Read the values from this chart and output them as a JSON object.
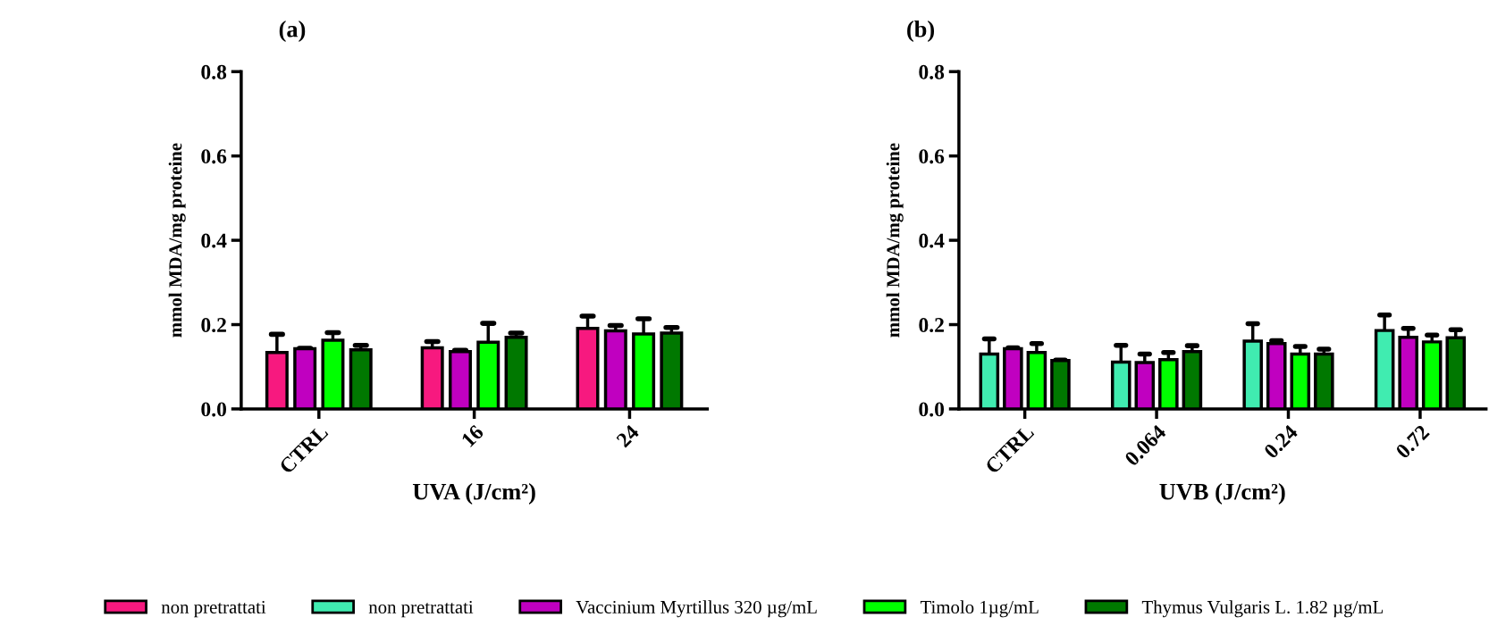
{
  "chart_data": [
    {
      "type": "bar",
      "title": "(a)",
      "xlabel": "UVA (J/cm²)",
      "ylabel": "mmol MDA/mg proteine",
      "categories": [
        "CTRL",
        "16",
        "24"
      ],
      "ylim": [
        0,
        0.8
      ],
      "yticks": [
        {
          "value": 0,
          "label": "0.0"
        },
        0.2,
        0.4,
        0.6,
        0.8
      ],
      "legend": "bottom",
      "series": [
        {
          "name": "non pretrattati",
          "color": "#f7197f",
          "values": [
            0.134,
            0.145,
            0.191
          ],
          "errors": [
            [
              0.134,
              0.177
            ],
            [
              0.145,
              0.16
            ],
            [
              0.191,
              0.22
            ]
          ]
        },
        {
          "name": "Vaccinium Myrtillus 320 µg/mL",
          "color": "#c000c0",
          "values": [
            0.143,
            0.136,
            0.185
          ],
          "errors": [
            [
              0.143,
              0.144
            ],
            [
              0.136,
              0.139
            ],
            [
              0.185,
              0.198
            ]
          ]
        },
        {
          "name": "Timolo 1µg/mL",
          "color": "#00ff00",
          "values": [
            0.163,
            0.158,
            0.178
          ],
          "errors": [
            [
              0.163,
              0.181
            ],
            [
              0.158,
              0.203
            ],
            [
              0.178,
              0.214
            ]
          ]
        },
        {
          "name": "Thymus Vulgaris L. 1.82 µg/mL",
          "color": "#007800",
          "values": [
            0.14,
            0.17,
            0.18
          ],
          "errors": [
            [
              0.14,
              0.151
            ],
            [
              0.17,
              0.18
            ],
            [
              0.18,
              0.193
            ]
          ]
        }
      ]
    },
    {
      "type": "bar",
      "title": "(b)",
      "xlabel": "UVB (J/cm²)",
      "ylabel": "mmol MDA/mg proteine",
      "categories": [
        "CTRL",
        "0.064",
        "0.24",
        "0.72"
      ],
      "ylim": [
        0,
        0.8
      ],
      "yticks": [
        {
          "value": 0,
          "label": "0.0"
        },
        0.2,
        0.4,
        0.6,
        0.8
      ],
      "legend": "bottom",
      "series": [
        {
          "name": "non pretrattati",
          "color": "#40ecb0",
          "values": [
            0.13,
            0.111,
            0.161,
            0.186
          ],
          "errors": [
            [
              0.13,
              0.166
            ],
            [
              0.111,
              0.151
            ],
            [
              0.161,
              0.202
            ],
            [
              0.186,
              0.223
            ]
          ]
        },
        {
          "name": "Vaccinium Myrtillus 320 µg/mL",
          "color": "#c000c0",
          "values": [
            0.143,
            0.11,
            0.155,
            0.17
          ],
          "errors": [
            [
              0.143,
              0.145
            ],
            [
              0.11,
              0.13
            ],
            [
              0.155,
              0.162
            ],
            [
              0.17,
              0.191
            ]
          ]
        },
        {
          "name": "Timolo 1µg/mL",
          "color": "#00ff00",
          "values": [
            0.134,
            0.117,
            0.13,
            0.159
          ],
          "errors": [
            [
              0.134,
              0.155
            ],
            [
              0.117,
              0.134
            ],
            [
              0.13,
              0.148
            ],
            [
              0.159,
              0.175
            ]
          ]
        },
        {
          "name": "Thymus Vulgaris L. 1.82 µg/mL",
          "color": "#007800",
          "values": [
            0.115,
            0.136,
            0.13,
            0.169
          ],
          "errors": [
            [
              0.115,
              0.116
            ],
            [
              0.136,
              0.15
            ],
            [
              0.13,
              0.142
            ],
            [
              0.169,
              0.188
            ]
          ]
        }
      ]
    }
  ]
}
